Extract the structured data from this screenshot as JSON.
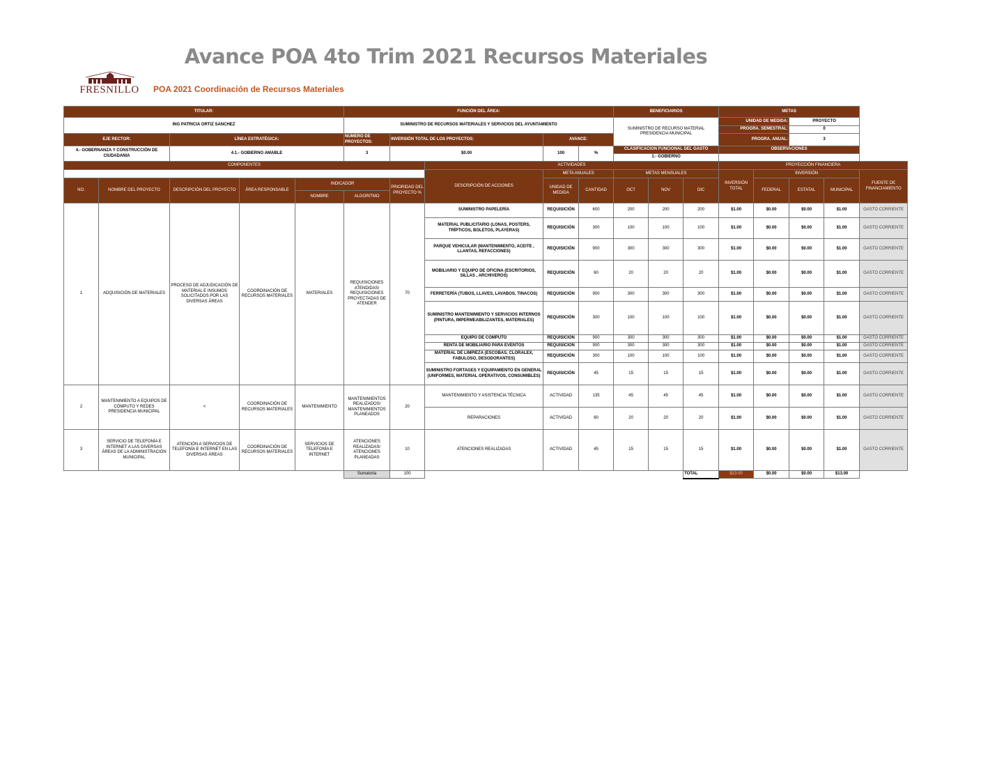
{
  "title": "Avance POA 4to Trim 2021 Recursos Materiales",
  "logo": {
    "text": "FRESNILLO"
  },
  "subtitle": "POA 2021  Coordinación de Recursos Materiales",
  "colors": {
    "header_brown": "#7b3613",
    "subtitle": "#c0561c",
    "fuente_gray": "#e0e0e0"
  },
  "header": {
    "titular_label": "TITULAR:",
    "titular_value": "ING PATRICIA ORTIZ SANCHEZ",
    "funcion_label": "FUNCIÓN DEL ÁREA:",
    "funcion_value": "SUMINISTRO DE RECURSOS MATERIALES Y SERVICIOS DEL AYUNTAMIENTO",
    "beneficiarios_label": "BENEFICIARIOS",
    "beneficiarios_value": "SUMINISTRO DE RECURSO MATERIAL PRESIDENCIA MUNICIPAL",
    "metas_label": "METAS",
    "unidad_medida_label": "UNIDAD DE MEDIDA:",
    "unidad_medida_value": "PROYECTO",
    "progr_semestral_label": "PROGRA. SEMESTRAL:",
    "progr_semestral_value": "0",
    "progr_anual_label": "PROGRA. ANUAL:",
    "progr_anual_value": "3",
    "eje_rector_label": "EJE RECTOR:",
    "eje_rector_value": "4.- GOBERNANZA Y CONSTRUCCIÓN DE CIUDADANIA",
    "linea_label": "LÍNEA ESTRATÉGICA:",
    "linea_value": "4.1.- GOBIERNO AMABLE",
    "numero_label": "NÚMERO DE PROYECTOS:",
    "numero_value": "3",
    "inversion_label": "INVERSIÓN TOTAL DE LOS PROYECTOS:",
    "inversion_value": "$0.00",
    "avance_label": "AVANCE:",
    "avance_value": "100",
    "avance_unit": "%",
    "clasificacion_label": "CLASIFICACIÓN FUNCIONAL DEL GASTO",
    "clasificacion_value": "1.- GOBIERNO",
    "observaciones_label": "OBSERVACIONES",
    "observaciones_value": ""
  },
  "sections": {
    "componentes": "COMPONENTES",
    "actividades": "ACTIVIDADES",
    "proyeccion": "PROYECCIÓN FINANCIERA",
    "meta_anuales": "META ANUALES",
    "metas_mensuales": "METAS MENSUALES",
    "inversion": "INVERSIÓN"
  },
  "columns": {
    "no": "NO.",
    "nombre_proyecto": "NOMBRE DEL PROYECTO",
    "descripcion_proyecto": "DESCRIPCIÓN DEL PROYECTO",
    "area": "ÁREA RESPONSABLE",
    "indicador": "INDICADOR",
    "ind_nombre": "NOMBRE",
    "ind_algoritmo": "ALGORITMO",
    "prioridad": "PRIORIDAD DEL PROYECTO %",
    "descripcion_acciones": "DESCRIPCIÓN DE ACCIONES",
    "unidad": "UNIDAD DE MEDIDA",
    "cantidad": "CANTIDAD",
    "oct": "OCT",
    "nov": "NOV",
    "dic": "DIC",
    "inversion_total": "INVERSIÓN TOTAL",
    "federal": "FEDERAL",
    "estatal": "ESTATAL",
    "municipal": "MUNICIPAL",
    "fuente": "FUENTE DE FINANCIAMIENTO"
  },
  "projects": [
    {
      "no": "1",
      "nombre": "ADQUISICIÓN DE MATERIALES",
      "descripcion": "PROCESO DE ADJUDICACIÓN DE MATERIAL E INSUMOS SOLICITADOS POR LAS DIVERSAS ÁREAS",
      "area": "COORDINACIÓN DE RECURSOS MATERIALES",
      "ind_nombre": "MATERIALES",
      "algoritmo": "REQUISICIONES ATENDIDAS/ REQUISICIONES PROYECTADAS DE ATENDER",
      "prioridad": "70",
      "activities": [
        {
          "desc": "SUMINISTRO PAPELERÍA",
          "unidad": "REQUISICIÓN",
          "cantidad": "600",
          "oct": "200",
          "nov": "200",
          "dic": "200",
          "total": "$1.00",
          "federal": "$0.00",
          "estatal": "$0.00",
          "municipal": "$1.00",
          "fuente": "GASTO CORRIENTE"
        },
        {
          "desc": "MATERIAL PUBLICITARIO (LONAS, POSTERS, TRÍPTICOS, BOLETOS, PLAYERAS)",
          "unidad": "REQUISICIÓN",
          "cantidad": "300",
          "oct": "100",
          "nov": "100",
          "dic": "100",
          "total": "$1.00",
          "federal": "$0.00",
          "estatal": "$0.00",
          "municipal": "$1.00",
          "fuente": "GASTO CORRIENTE"
        },
        {
          "desc": "PARQUE VEHICULAR (MANTENIMIENTO, ACEITE , LLANTAS, REFACCIONES)",
          "unidad": "REQUISICIÓN",
          "cantidad": "900",
          "oct": "300",
          "nov": "300",
          "dic": "300",
          "total": "$1.00",
          "federal": "$0.00",
          "estatal": "$0.00",
          "municipal": "$1.00",
          "fuente": "GASTO CORRIENTE"
        },
        {
          "desc": "MOBILIARIO Y EQUIPO DE OFICINA  (ESCRITORIOS, SILLAS , ARCHIVEROS)",
          "unidad": "REQUISICIÓN",
          "cantidad": "60",
          "oct": "20",
          "nov": "20",
          "dic": "20",
          "total": "$1.00",
          "federal": "$0.00",
          "estatal": "$0.00",
          "municipal": "$1.00",
          "fuente": "GASTO CORRIENTE"
        },
        {
          "desc": "FERRETERÍA (TUBOS, LLAVES, LAVABOS, TINACOS)",
          "unidad": "REQUISICIÓN",
          "cantidad": "900",
          "oct": "300",
          "nov": "300",
          "dic": "300",
          "total": "$1.00",
          "federal": "$0.00",
          "estatal": "$0.00",
          "municipal": "$1.00",
          "fuente": "GASTO CORRIENTE"
        },
        {
          "desc": "SUMINISTRO MANTENIMIENTO Y SERVICIOS INTERNOS (PINTURA, IMPERMEABILIZANTES, MATERIALES)",
          "unidad": "REQUISICIÓN",
          "cantidad": "300",
          "oct": "100",
          "nov": "100",
          "dic": "100",
          "total": "$1.00",
          "federal": "$0.00",
          "estatal": "$0.00",
          "municipal": "$1.00",
          "fuente": "GASTO CORRIENTE"
        },
        {
          "desc": "EQUIPO DE CÓMPUTO",
          "unidad": "REQUISICIÓN",
          "cantidad": "900",
          "oct": "300",
          "nov": "300",
          "dic": "300",
          "total": "$1.00",
          "federal": "$0.00",
          "estatal": "$0.00",
          "municipal": "$1.00",
          "fuente": "GASTO CORRIENTE"
        },
        {
          "desc": "RENTA DE MOBILIARIO PARA EVENTOS",
          "unidad": "REQUISICIÓN",
          "cantidad": "900",
          "oct": "300",
          "nov": "300",
          "dic": "300",
          "total": "$1.00",
          "federal": "$0.00",
          "estatal": "$0.00",
          "municipal": "$1.00",
          "fuente": "GASTO CORRIENTE"
        },
        {
          "desc": "MATERIAL DE LIMPIEZA (ESCOBAS, CLORALEX, FABULOSO, DESODORANTES)",
          "unidad": "REQUISICIÓN",
          "cantidad": "300",
          "oct": "100",
          "nov": "100",
          "dic": "100",
          "total": "$1.00",
          "federal": "$0.00",
          "estatal": "$0.00",
          "municipal": "$1.00",
          "fuente": "GASTO CORRIENTE"
        },
        {
          "desc": "SUMINISTRO FORTAGES Y EQUIPAMIENTO EN GENERAL (UNIFORMES, MATERIAL OPERATIVOS, CONSUMIBLES)",
          "unidad": "REQUISICIÓN",
          "cantidad": "45",
          "oct": "15",
          "nov": "15",
          "dic": "15",
          "total": "$1.00",
          "federal": "$0.00",
          "estatal": "$0.00",
          "municipal": "$1.00",
          "fuente": "GASTO CORRIENTE"
        }
      ]
    },
    {
      "no": "2",
      "nombre": "MANTENIMIENTO A EQUIPOS DE CÓMPUTO Y REDES PRESIDENCIA MUNICIPAL",
      "descripcion": "<",
      "area": "COORDINACIÓN DE RECURSOS MATERIALES",
      "ind_nombre": "MANTENIMIENTO",
      "algoritmo": "MANTENIMIENTOS REALIZADOS/ MANTENIMIENTOS PLANEADOS",
      "prioridad": "20",
      "activities": [
        {
          "desc": "MANTENIMIENTO Y ASISTENCIA TÉCNICA",
          "unidad": "ACTIVIDAD",
          "cantidad": "135",
          "oct": "45",
          "nov": "45",
          "dic": "45",
          "total": "$1.00",
          "federal": "$0.00",
          "estatal": "$0.00",
          "municipal": "$1.00",
          "fuente": "GASTO CORRIENTE"
        },
        {
          "desc": "REPARACIONES",
          "unidad": "ACTIVIDAD",
          "cantidad": "60",
          "oct": "20",
          "nov": "20",
          "dic": "20",
          "total": "$1.00",
          "federal": "$0.00",
          "estatal": "$0.00",
          "municipal": "$1.00",
          "fuente": "GASTO CORRIENTE"
        }
      ]
    },
    {
      "no": "3",
      "nombre": "SERVICIO DE TELEFONÍA E INTERNET A LAS DIVERSAS ÁREAS DE LA ADMINISTRACIÓN MUNICIPAL",
      "descripcion": "ATENCIÓN A SERVICIOS DE TELEFONÍA E INTERNET EN LAS DIVERSAS ÁREAS",
      "area": "COORDINACIÓN DE RECURSOS MATERIALES",
      "ind_nombre": "SERVICIOS DE TELEFONÍA E INTERNET",
      "algoritmo": "ATENCIONES REALIZADAS/ ATENCIONES PLANEADAS",
      "prioridad": "10",
      "activities": [
        {
          "desc": "ATENCIONES REALIZADAS",
          "unidad": "ACTIVIDAD",
          "cantidad": "45",
          "oct": "15",
          "nov": "15",
          "dic": "15",
          "total": "$1.00",
          "federal": "$0.00",
          "estatal": "$0.00",
          "municipal": "$1.00",
          "fuente": "GASTO CORRIENTE"
        }
      ]
    }
  ],
  "totals": {
    "sumatoria_label": "Sumatoria",
    "sumatoria_value": "100",
    "total_label": "TOTAL",
    "inversion_total": "$13.00",
    "federal": "$0.00",
    "estatal": "$0.00",
    "municipal": "$13.00"
  }
}
